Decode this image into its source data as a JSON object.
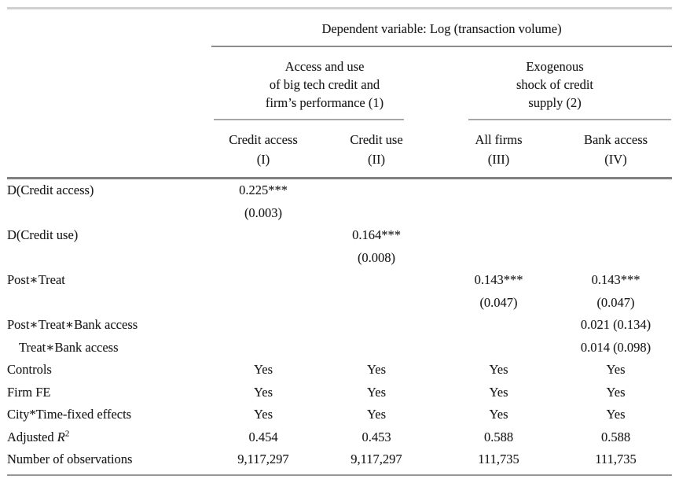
{
  "page": {
    "background": "#ffffff",
    "text_color": "#1c1c1c",
    "rule_color_dark": "#808080",
    "rule_color_medium": "#8d8d8d",
    "rule_color_light": "#d0d0d0"
  },
  "table": {
    "dependent_variable_header": "Dependent variable: Log (transaction volume)",
    "groups": [
      {
        "lines": [
          "Access and use",
          "of big tech credit and",
          "firm’s performance (1)"
        ]
      },
      {
        "lines": [
          "Exogenous",
          "shock of credit",
          "supply (2)"
        ]
      }
    ],
    "columns": [
      {
        "name": "Credit access",
        "number": "(I)"
      },
      {
        "name": "Credit use",
        "number": "(II)"
      },
      {
        "name": "All firms",
        "number": "(III)"
      },
      {
        "name": "Bank access",
        "number": "(IV)"
      }
    ],
    "rows": [
      {
        "label": "D(Credit access)",
        "cells": [
          "0.225***",
          "",
          "",
          ""
        ]
      },
      {
        "label": "",
        "cells": [
          "(0.003)",
          "",
          "",
          ""
        ]
      },
      {
        "label": "D(Credit use)",
        "cells": [
          "",
          "0.164***",
          "",
          ""
        ]
      },
      {
        "label": "",
        "cells": [
          "",
          "(0.008)",
          "",
          ""
        ]
      },
      {
        "label": "Post∗Treat",
        "cells": [
          "",
          "",
          "0.143***",
          "0.143***"
        ]
      },
      {
        "label": "",
        "cells": [
          "",
          "",
          "(0.047)",
          "(0.047)"
        ]
      },
      {
        "label": "Post∗Treat∗Bank access",
        "cells": [
          "",
          "",
          "",
          "0.021 (0.134)"
        ]
      },
      {
        "label": "Treat∗Bank access",
        "indent": true,
        "cells": [
          "",
          "",
          "",
          "0.014 (0.098)"
        ]
      },
      {
        "label": "Controls",
        "cells": [
          "Yes",
          "Yes",
          "Yes",
          "Yes"
        ]
      },
      {
        "label": "Firm FE",
        "cells": [
          "Yes",
          "Yes",
          "Yes",
          "Yes"
        ]
      },
      {
        "label": "City*Time-fixed effects",
        "cells": [
          "Yes",
          "Yes",
          "Yes",
          "Yes"
        ]
      },
      {
        "label": "Adjusted R²",
        "label_segments": [
          {
            "text": "Adjusted "
          },
          {
            "text": "R",
            "style": "italic"
          },
          {
            "text": "2",
            "style": "sup"
          }
        ],
        "cells": [
          "0.454",
          "0.453",
          "0.588",
          "0.588"
        ]
      },
      {
        "label": "Number of observations",
        "cells": [
          "9,117,297",
          "9,117,297",
          "111,735",
          "111,735"
        ]
      }
    ]
  }
}
